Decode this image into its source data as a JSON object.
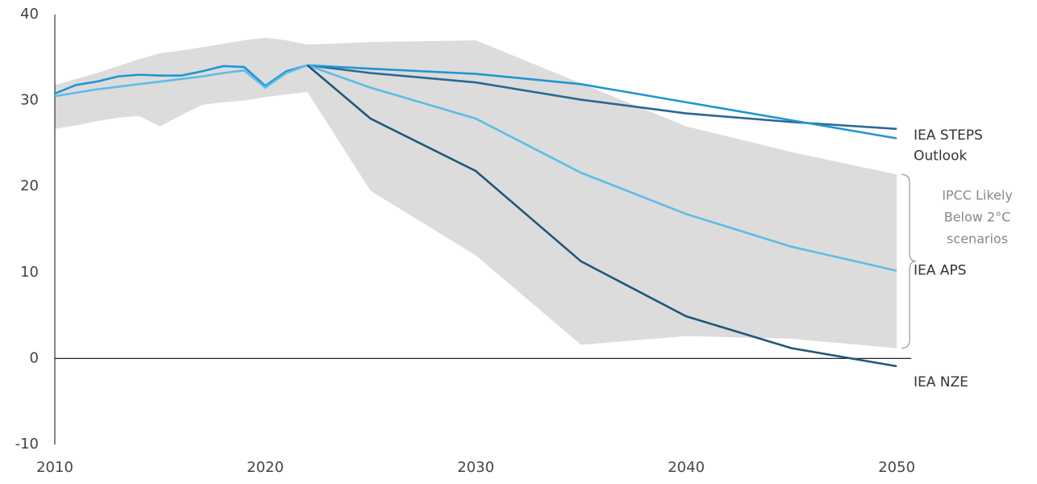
{
  "chart_data": {
    "type": "line",
    "x": [
      2010,
      2011,
      2012,
      2013,
      2014,
      2015,
      2016,
      2017,
      2018,
      2019,
      2020,
      2021,
      2022,
      2025,
      2030,
      2035,
      2040,
      2045,
      2050
    ],
    "xlim": [
      2010,
      2050
    ],
    "xticks": [
      2010,
      2020,
      2030,
      2040,
      2050
    ],
    "ylim": [
      -10,
      40
    ],
    "yticks": [
      -10,
      0,
      10,
      20,
      30,
      40
    ],
    "grid": false,
    "band": {
      "label_lines": [
        "IPCC Likely",
        "Below 2°C",
        "scenarios"
      ],
      "color": "#dcdcdc",
      "upper": [
        31.8,
        32.5,
        33.2,
        34,
        34.8,
        35.5,
        35.8,
        36.2,
        36.6,
        37,
        37.3,
        37,
        36.5,
        36.8,
        37,
        32,
        27,
        24,
        21.4
      ],
      "lower": [
        26.7,
        27.1,
        27.6,
        28,
        28.2,
        27,
        28.3,
        29.5,
        29.8,
        30,
        30.4,
        30.7,
        31,
        19.5,
        12,
        1.6,
        2.6,
        2.3,
        1.2
      ]
    },
    "series": [
      {
        "name": "IEA STEPS",
        "color": "#2a6896",
        "values": [
          null,
          null,
          null,
          null,
          null,
          null,
          null,
          null,
          null,
          null,
          null,
          null,
          34.1,
          33.2,
          32.1,
          30.1,
          28.5,
          27.5,
          26.7
        ]
      },
      {
        "name": "Outlook",
        "color": "#2196d3",
        "values": [
          30.8,
          31.8,
          32.2,
          32.8,
          33.0,
          32.9,
          32.9,
          33.4,
          34.0,
          33.9,
          31.7,
          33.4,
          34.1,
          33.7,
          33.1,
          31.9,
          29.8,
          27.7,
          25.6
        ]
      },
      {
        "name": "IEA APS",
        "color": "#5bbde8",
        "values": [
          30.5,
          30.9,
          31.3,
          31.6,
          31.9,
          32.2,
          32.5,
          32.8,
          33.2,
          33.5,
          31.5,
          33.2,
          34.1,
          31.5,
          27.9,
          21.6,
          16.8,
          13.0,
          10.2
        ]
      },
      {
        "name": "IEA NZE",
        "color": "#1f5878",
        "values": [
          null,
          null,
          null,
          null,
          null,
          null,
          null,
          null,
          null,
          null,
          null,
          null,
          34.1,
          27.9,
          21.8,
          11.3,
          4.9,
          1.2,
          -0.9
        ]
      }
    ]
  }
}
